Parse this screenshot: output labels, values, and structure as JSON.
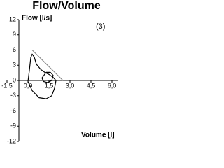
{
  "chart_data": {
    "type": "line",
    "title": "Flow/Volume",
    "y_label": "Flow [l/s]",
    "x_label": "Volume [l]",
    "annotation": "(3)",
    "xlim": [
      -1.5,
      6.0
    ],
    "xticks": [
      {
        "value": -1.5,
        "label": "-1,5"
      },
      {
        "value": 0,
        "label": "0,0"
      },
      {
        "value": 1.5,
        "label": "1,5"
      },
      {
        "value": 3.0,
        "label": "3,0"
      },
      {
        "value": 4.5,
        "label": "4,5"
      },
      {
        "value": 6.0,
        "label": "6,0"
      }
    ],
    "ylim": [
      -12,
      12
    ],
    "yticks": [
      12,
      9,
      6,
      3,
      0,
      -3,
      -6,
      -9,
      -12
    ],
    "series": [
      {
        "color": "#888888",
        "x": [
          0.3,
          2.5
        ],
        "values": [
          6,
          0
        ]
      },
      {
        "color": "#000000",
        "x": [
          0,
          0.1,
          0.2,
          0.3,
          0.45,
          0.6,
          0.9,
          1.2,
          1.5,
          1.8,
          2.0,
          1.9,
          1.7,
          1.3,
          0.8,
          0.3,
          0
        ],
        "values": [
          -0.2,
          2,
          4.5,
          5.2,
          4.6,
          3.2,
          2.2,
          1.6,
          1.2,
          0.6,
          0,
          -1.5,
          -3,
          -3.6,
          -3.4,
          -2,
          -0.2
        ]
      },
      {
        "color": "#000000",
        "x": [
          1.0,
          1.3,
          1.6,
          1.8,
          1.7,
          1.4,
          1.1,
          1.0
        ],
        "values": [
          0.5,
          1.6,
          1.6,
          1.0,
          0,
          -0.4,
          -0.2,
          0.5
        ]
      }
    ]
  }
}
